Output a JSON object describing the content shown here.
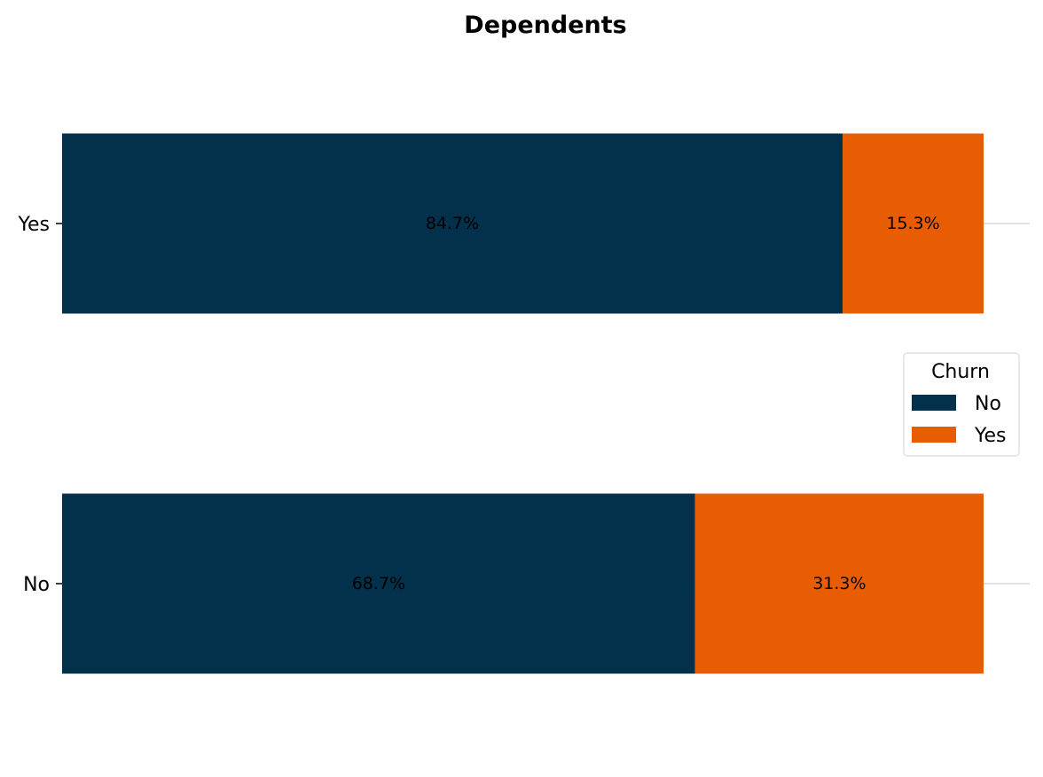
{
  "chart_data": {
    "type": "bar",
    "orientation": "horizontal",
    "stacked": true,
    "title": "Dependents",
    "xlabel": "",
    "ylabel": "",
    "categories": [
      "Yes",
      "No"
    ],
    "series": [
      {
        "name": "No",
        "color": "#03304a",
        "values": [
          84.7,
          68.7
        ],
        "labels": [
          "84.7%",
          "68.7%"
        ]
      },
      {
        "name": "Yes",
        "color": "#e85d04",
        "values": [
          15.3,
          31.3
        ],
        "labels": [
          "15.3%",
          "31.3%"
        ]
      }
    ],
    "xlim": [
      0,
      100
    ],
    "grid": "horizontal at category ticks",
    "legend": {
      "title": "Churn",
      "placement": "center-right"
    }
  }
}
